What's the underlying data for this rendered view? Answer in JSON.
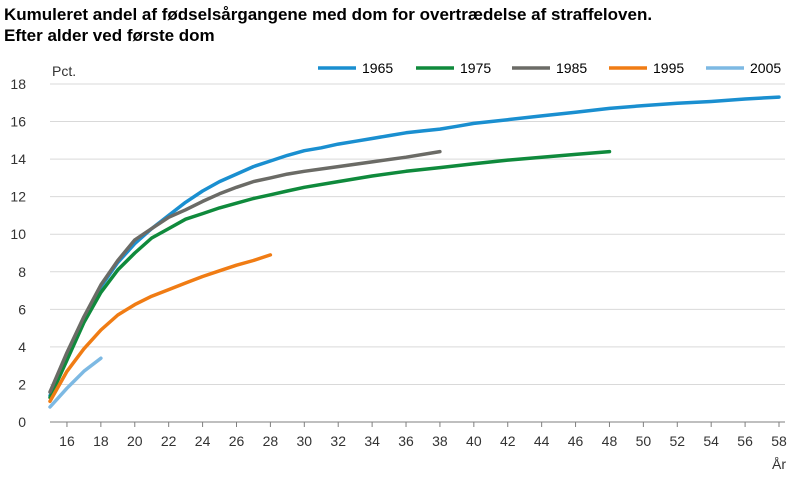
{
  "header": {
    "title_line1": "Kumuleret andel af fødselsårgangene med dom for overtrædelse af straffeloven.",
    "title_line2": "Efter alder ved første dom"
  },
  "chart_data": {
    "type": "line",
    "title": "Kumuleret andel af fødselsårgangene med dom for overtrædelse af straffeloven. Efter alder ved første dom",
    "ylabel": "Pct.",
    "xlabel": "År",
    "xlim": [
      15,
      58
    ],
    "ylim": [
      0,
      18
    ],
    "xticks": [
      16,
      18,
      20,
      22,
      24,
      26,
      28,
      30,
      32,
      34,
      36,
      38,
      40,
      42,
      44,
      46,
      48,
      50,
      52,
      54,
      56,
      58
    ],
    "yticks": [
      0,
      2,
      4,
      6,
      8,
      10,
      12,
      14,
      16,
      18
    ],
    "grid": "horizontal",
    "legend_position": "top",
    "series": [
      {
        "name": "1965",
        "color": "#1a8fd0",
        "x": [
          15,
          16,
          17,
          18,
          19,
          20,
          21,
          22,
          23,
          24,
          25,
          26,
          27,
          28,
          29,
          30,
          31,
          32,
          33,
          34,
          35,
          36,
          37,
          38,
          39,
          40,
          42,
          44,
          46,
          48,
          50,
          52,
          54,
          56,
          58
        ],
        "y": [
          1.4,
          3.4,
          5.5,
          7.2,
          8.5,
          9.5,
          10.3,
          11.0,
          11.7,
          12.3,
          12.8,
          13.2,
          13.6,
          13.9,
          14.2,
          14.45,
          14.6,
          14.8,
          14.95,
          15.1,
          15.25,
          15.4,
          15.5,
          15.6,
          15.75,
          15.9,
          16.1,
          16.3,
          16.5,
          16.7,
          16.85,
          16.97,
          17.07,
          17.2,
          17.3
        ]
      },
      {
        "name": "1975",
        "color": "#0f8a3c",
        "x": [
          15,
          16,
          17,
          18,
          19,
          20,
          21,
          22,
          23,
          24,
          25,
          26,
          27,
          28,
          29,
          30,
          32,
          34,
          36,
          38,
          40,
          42,
          44,
          46,
          48
        ],
        "y": [
          1.3,
          3.3,
          5.3,
          6.9,
          8.1,
          9.0,
          9.8,
          10.3,
          10.8,
          11.1,
          11.4,
          11.65,
          11.9,
          12.1,
          12.3,
          12.5,
          12.8,
          13.1,
          13.35,
          13.55,
          13.75,
          13.95,
          14.1,
          14.25,
          14.4
        ]
      },
      {
        "name": "1985",
        "color": "#6b6b66",
        "x": [
          15,
          16,
          17,
          18,
          19,
          20,
          21,
          22,
          23,
          24,
          25,
          26,
          27,
          28,
          29,
          30,
          32,
          34,
          36,
          38
        ],
        "y": [
          1.6,
          3.7,
          5.6,
          7.3,
          8.6,
          9.7,
          10.3,
          10.9,
          11.3,
          11.75,
          12.15,
          12.5,
          12.8,
          13.0,
          13.2,
          13.35,
          13.6,
          13.85,
          14.1,
          14.4
        ]
      },
      {
        "name": "1995",
        "color": "#f07c14",
        "x": [
          15,
          16,
          17,
          18,
          19,
          20,
          21,
          22,
          23,
          24,
          25,
          26,
          27,
          28
        ],
        "y": [
          1.1,
          2.7,
          3.9,
          4.9,
          5.7,
          6.25,
          6.7,
          7.05,
          7.4,
          7.75,
          8.05,
          8.35,
          8.6,
          8.9
        ]
      },
      {
        "name": "2005",
        "color": "#7db9e3",
        "x": [
          15,
          16,
          17,
          18
        ],
        "y": [
          0.8,
          1.8,
          2.7,
          3.4
        ]
      }
    ]
  }
}
